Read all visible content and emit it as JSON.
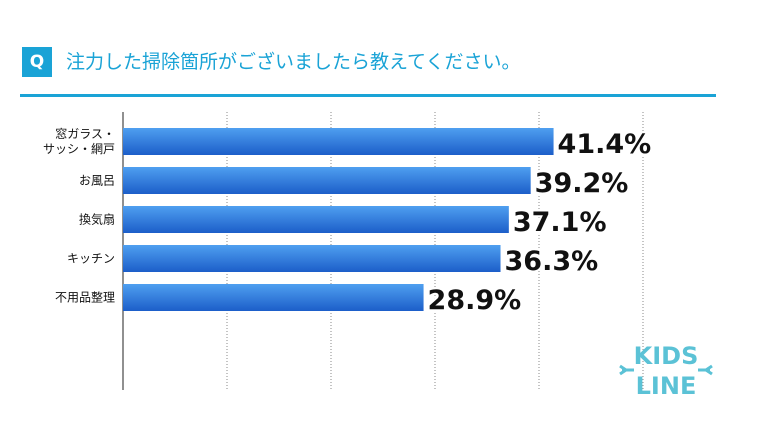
{
  "header": {
    "badge": "Q",
    "title": "注力した掃除箇所がございましたら教えてください。"
  },
  "chart_data": {
    "type": "bar",
    "orientation": "horizontal",
    "categories": [
      [
        "窓ガラス・",
        "サッシ・網戸"
      ],
      [
        "お風呂"
      ],
      [
        "換気扇"
      ],
      [
        "キッチン"
      ],
      [
        "不用品整理"
      ]
    ],
    "values": [
      41.4,
      39.2,
      37.1,
      36.3,
      28.9
    ],
    "value_labels": [
      "41.4%",
      "39.2%",
      "37.1%",
      "36.3%",
      "28.9%"
    ],
    "xlim": [
      0,
      50
    ],
    "grid": true,
    "colors": {
      "bar_top": "#4f9ff0",
      "bar_bottom": "#1c5ec9",
      "accent": "#1aa3d6"
    }
  },
  "logo": {
    "line1": "KIDS",
    "line2": "LINE",
    "color": "#5bc2d6"
  }
}
